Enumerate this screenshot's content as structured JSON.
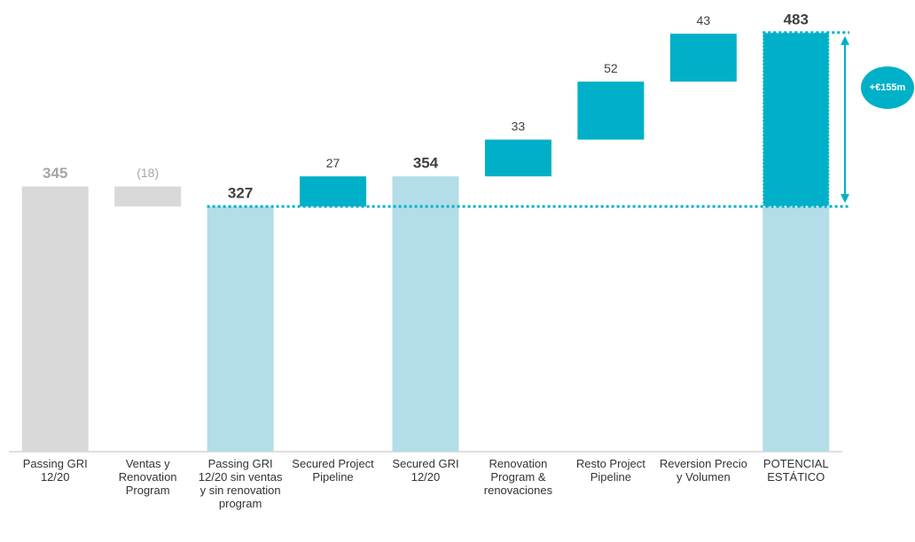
{
  "chart_data": {
    "type": "waterfall",
    "categories": [
      "Passing GRI 12/20",
      "Ventas y Renovation Program",
      "Passing GRI 12/20 sin ventas y sin renovation program",
      "Secured Project Pipeline",
      "Secured GRI 12/20",
      "Renovation Program & renovaciones",
      "Resto Project Pipeline",
      "Reversion Precio y Volumen",
      "POTENCIAL ESTÁTICO"
    ],
    "values": [
      345,
      -18,
      327,
      27,
      354,
      33,
      52,
      43,
      483
    ],
    "value_labels": [
      "345",
      "(18)",
      "327",
      "27",
      "354",
      "33",
      "52",
      "43",
      "483"
    ],
    "kinds": [
      "total",
      "delta",
      "total",
      "delta",
      "total",
      "delta",
      "delta",
      "delta",
      "total"
    ],
    "colors": [
      "#d9d9d9",
      "#d9d9d9",
      "#b3dde8",
      "#00b0c8",
      "#b3dde8",
      "#00b0c8",
      "#00b0c8",
      "#00b0c8",
      "#b3dde8"
    ],
    "label_colors": [
      "#a6a6a6",
      "#a6a6a6",
      "#404040",
      "#404040",
      "#404040",
      "#404040",
      "#404040",
      "#404040",
      "#404040"
    ],
    "highlight_color": "#00b0c8",
    "ylim": [
      107,
      490
    ],
    "annotation": "+€155m"
  }
}
